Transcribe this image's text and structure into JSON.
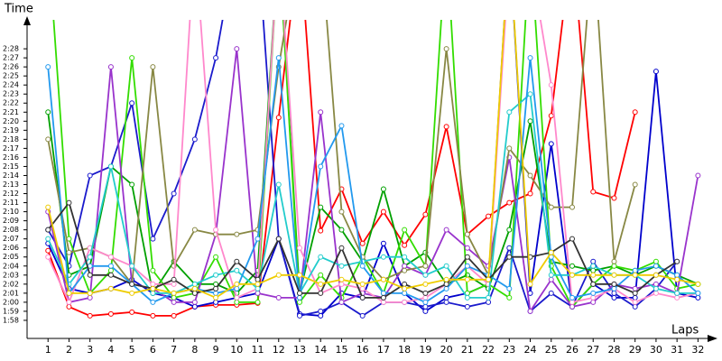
{
  "chart_data": {
    "type": "line",
    "y_label": "Time",
    "x_label": "Laps",
    "x": [
      1,
      2,
      3,
      4,
      5,
      6,
      7,
      8,
      9,
      10,
      11,
      12,
      13,
      14,
      15,
      16,
      17,
      18,
      19,
      20,
      21,
      22,
      23,
      24,
      25,
      26,
      27,
      28,
      29,
      30,
      31,
      32
    ],
    "xlim": [
      0,
      32.5
    ],
    "ylim": [
      116,
      150.4
    ],
    "yticks": [
      {
        "value": 118,
        "label": "1:58"
      },
      {
        "value": 119,
        "label": "1:59"
      },
      {
        "value": 120,
        "label": "2:00"
      },
      {
        "value": 121,
        "label": "2:01"
      },
      {
        "value": 122,
        "label": "2:02"
      },
      {
        "value": 123,
        "label": "2:03"
      },
      {
        "value": 124,
        "label": "2:04"
      },
      {
        "value": 125,
        "label": "2:05"
      },
      {
        "value": 126,
        "label": "2:06"
      },
      {
        "value": 127,
        "label": "2:07"
      },
      {
        "value": 128,
        "label": "2:08"
      },
      {
        "value": 129,
        "label": "2:09"
      },
      {
        "value": 130,
        "label": "2:10"
      },
      {
        "value": 131,
        "label": "2:11"
      },
      {
        "value": 132,
        "label": "2:12"
      },
      {
        "value": 133,
        "label": "2:13"
      },
      {
        "value": 134,
        "label": "2:14"
      },
      {
        "value": 135,
        "label": "2:15"
      },
      {
        "value": 136,
        "label": "2:16"
      },
      {
        "value": 137,
        "label": "2:17"
      },
      {
        "value": 138,
        "label": "2:18"
      },
      {
        "value": 139,
        "label": "2:19"
      },
      {
        "value": 140,
        "label": "2:20"
      },
      {
        "value": 141,
        "label": "2:21"
      },
      {
        "value": 142,
        "label": "2:22"
      },
      {
        "value": 143,
        "label": "2:23"
      },
      {
        "value": 144,
        "label": "2:24"
      },
      {
        "value": 145,
        "label": "2:25"
      },
      {
        "value": 146,
        "label": "2:26"
      },
      {
        "value": 147,
        "label": "2:27"
      },
      {
        "value": 148,
        "label": "2:28"
      }
    ],
    "series": [
      {
        "color": "#ff0000",
        "values": [
          125.7,
          119.5,
          118.5,
          118.7,
          118.9,
          118.5,
          118.5,
          119.5,
          119.7,
          119.7,
          119.9,
          140.4,
          160,
          127.9,
          132.5,
          126.5,
          130,
          126.3,
          129.7,
          139.4,
          127.5,
          129.5,
          131,
          132,
          140.6,
          160,
          132.2,
          131.5,
          141,
          null,
          null,
          null
        ]
      },
      {
        "color": "#0000cc",
        "values": [
          126.5,
          121.5,
          121,
          121.5,
          122.5,
          121,
          120.5,
          119.5,
          120,
          120.5,
          121,
          127,
          118.7,
          118.5,
          121,
          120.5,
          126.5,
          121,
          119,
          120.5,
          121,
          122,
          160,
          121,
          137.5,
          119.5,
          122,
          120.5,
          120.5,
          145.5,
          121,
          120.5
        ]
      },
      {
        "color": "#1a1acc",
        "values": [
          128,
          124,
          134,
          135,
          142,
          127,
          132,
          138,
          147,
          160,
          160,
          127,
          118.5,
          119,
          120,
          118.5,
          120,
          120,
          119.5,
          120,
          119.5,
          120,
          126,
          119,
          121,
          119.5,
          124.5,
          121,
          119.5,
          121.5,
          124.5,
          null
        ]
      },
      {
        "color": "#00a000",
        "values": [
          141,
          123,
          124,
          135,
          133,
          121,
          124.5,
          122,
          122,
          121,
          123.5,
          160,
          121,
          130.5,
          128,
          124.5,
          132.5,
          124,
          125.5,
          122,
          123,
          121.5,
          128,
          140,
          124.5,
          124,
          123.5,
          124,
          123,
          124,
          123,
          122
        ]
      },
      {
        "color": "#33dd00",
        "values": [
          160,
          127,
          121,
          123.5,
          147,
          123.5,
          120.5,
          121,
          125,
          120,
          120,
          160,
          120,
          123,
          120.5,
          125,
          121,
          128,
          124,
          160,
          121,
          122,
          120.5,
          160,
          124,
          119.5,
          122,
          124,
          123.5,
          124.5,
          121.5,
          122
        ]
      },
      {
        "color": "#9933cc",
        "values": [
          130,
          120,
          120.5,
          146,
          122,
          121.5,
          120,
          120,
          127.5,
          148,
          121,
          120.5,
          120.5,
          141,
          120,
          121,
          120.5,
          124,
          123,
          128,
          126,
          124,
          136,
          119,
          122.5,
          119.5,
          120,
          122,
          121.5,
          122,
          121,
          134
        ]
      },
      {
        "color": "#888844",
        "values": [
          138,
          125.5,
          126,
          125,
          122,
          146,
          124,
          128,
          127.5,
          127.5,
          128,
          146,
          160,
          160,
          130,
          125,
          122.5,
          123.5,
          124,
          148,
          127.5,
          123,
          137,
          134,
          130.5,
          130.5,
          160,
          124.5,
          133,
          null,
          null,
          null
        ]
      },
      {
        "color": "#ff88cc",
        "values": [
          125,
          120,
          126,
          125,
          124,
          122,
          122,
          160,
          128,
          120.5,
          121.5,
          160,
          126,
          121,
          122,
          121.5,
          120,
          120,
          120.5,
          122,
          124,
          122,
          158,
          158,
          144,
          120,
          120.5,
          121.5,
          120,
          121,
          120.5,
          121
        ]
      },
      {
        "color": "#22cccc",
        "values": [
          127,
          122,
          125,
          135,
          124,
          121,
          121,
          122,
          123,
          123.5,
          121.5,
          133,
          121,
          125,
          124,
          124.5,
          125,
          125,
          123,
          124,
          120.5,
          120.5,
          141,
          143,
          123,
          123,
          124,
          123,
          123,
          121.5,
          121,
          121
        ]
      },
      {
        "color": "#2299ee",
        "values": [
          146,
          121,
          124,
          124,
          122,
          120,
          121,
          121.5,
          121,
          121.5,
          127,
          147,
          120.5,
          135,
          139.5,
          124,
          121,
          121,
          120,
          121.5,
          124,
          123,
          121.5,
          147,
          125,
          120.5,
          121,
          121.5,
          123.5,
          124,
          123,
          121
        ]
      },
      {
        "color": "#333333",
        "values": [
          128,
          131,
          123,
          123,
          122,
          121.5,
          122.5,
          121,
          121.5,
          124.5,
          122.5,
          127,
          121,
          121,
          126,
          120.5,
          120.5,
          122,
          121,
          122,
          125,
          122.5,
          125,
          125,
          125.5,
          127,
          122,
          122,
          121,
          123,
          124.5,
          null
        ]
      },
      {
        "color": "#eecc00",
        "values": [
          130.5,
          121,
          121,
          121.5,
          121,
          121.5,
          121,
          121.5,
          120.5,
          122,
          122,
          123,
          123,
          122,
          122.5,
          122,
          122.5,
          121.5,
          122,
          122.5,
          122.5,
          122.5,
          160,
          122,
          125.5,
          123,
          123,
          123,
          123,
          123,
          122.5,
          122
        ]
      }
    ]
  }
}
